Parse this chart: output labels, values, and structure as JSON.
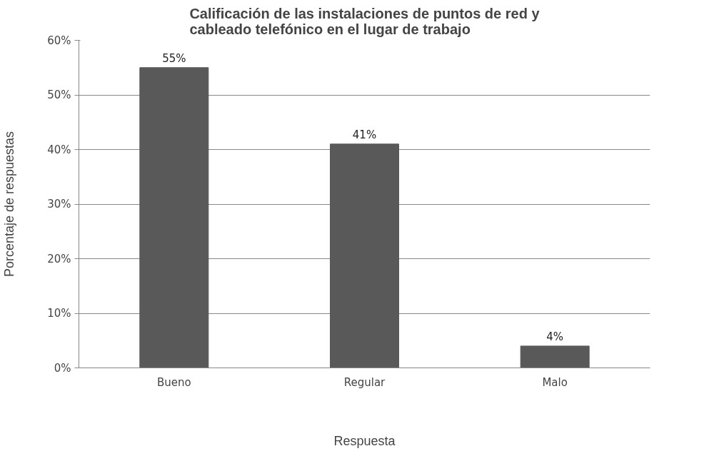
{
  "chart_data": {
    "type": "bar",
    "title": "Calificación de las instalaciones de puntos de red y cableado telefónico en el lugar de trabajo",
    "xlabel": "Respuesta",
    "ylabel": "Porcentaje de respuestas",
    "categories": [
      "Bueno",
      "Regular",
      "Malo"
    ],
    "values": [
      55,
      41,
      4
    ],
    "value_labels": [
      "55%",
      "41%",
      "4%"
    ],
    "color": "#595959",
    "ylim": [
      0,
      60
    ],
    "yticks": [
      {
        "value": 0,
        "label": "0%"
      },
      {
        "value": 10,
        "label": "10%"
      },
      {
        "value": 20,
        "label": "20%"
      },
      {
        "value": 30,
        "label": "30%"
      },
      {
        "value": 40,
        "label": "40%"
      },
      {
        "value": 50,
        "label": "50%"
      },
      {
        "value": 60,
        "label": "60%"
      }
    ],
    "grid": "y"
  }
}
